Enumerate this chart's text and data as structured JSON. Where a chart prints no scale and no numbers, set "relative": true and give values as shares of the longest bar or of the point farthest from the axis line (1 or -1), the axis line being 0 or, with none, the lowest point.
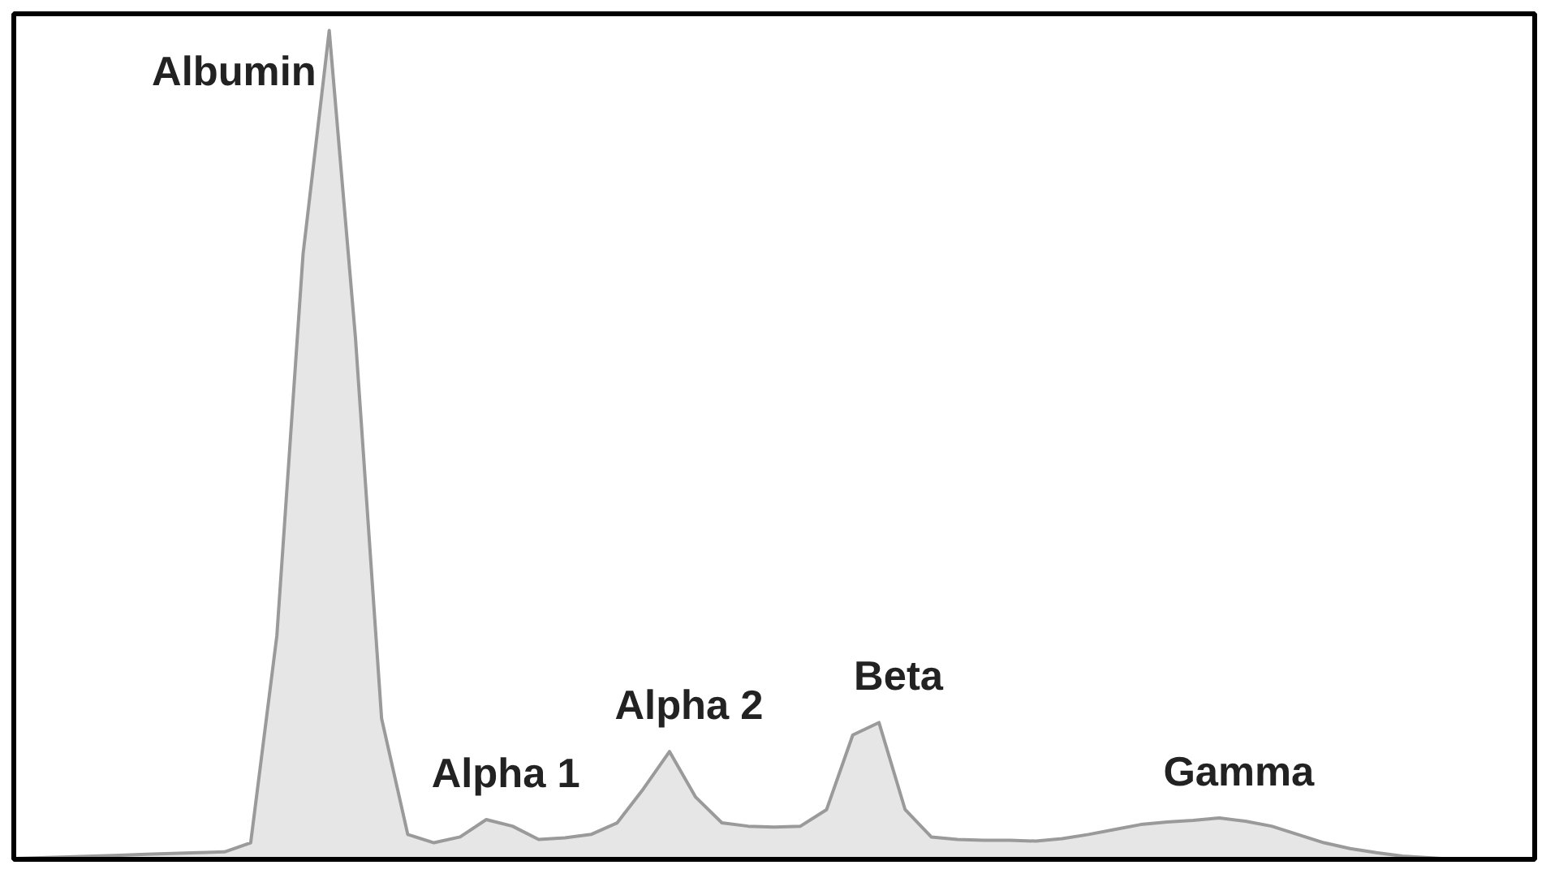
{
  "chart_data": {
    "type": "area",
    "relative": true,
    "color": "#e6e6e6",
    "categories": [
      null,
      null,
      null,
      null,
      null,
      null,
      null,
      null,
      null,
      null,
      null,
      null,
      null,
      null,
      null,
      null,
      null,
      null,
      null,
      null,
      null,
      null,
      null,
      null,
      null,
      null,
      null,
      null,
      null,
      null,
      null,
      null,
      null,
      null,
      null,
      null,
      null,
      null,
      null,
      null,
      null,
      null,
      null,
      null,
      null,
      null,
      null,
      null,
      null,
      null,
      null,
      null,
      null,
      null,
      null,
      null,
      null,
      null,
      null
    ],
    "values": [
      0.001,
      0.002,
      0.003,
      0.004,
      0.005,
      0.006,
      0.007,
      0.008,
      0.009,
      0.02,
      0.27,
      0.73,
      1,
      0.63,
      0.17,
      0.03,
      0.02,
      0.027,
      0.048,
      0.04,
      0.024,
      0.026,
      0.03,
      0.044,
      0.085,
      0.13,
      0.075,
      0.044,
      0.04,
      0.039,
      0.04,
      0.06,
      0.15,
      0.165,
      0.06,
      0.027,
      0.024,
      0.023,
      0.023,
      0.022,
      0.025,
      0.03,
      0.036,
      0.042,
      0.045,
      0.047,
      0.05,
      0.046,
      0.04,
      0.03,
      0.02,
      0.013,
      0.008,
      0.004,
      0.002,
      0,
      0,
      0,
      0
    ],
    "annotations": [
      "Albumin",
      "Alpha 1",
      "Alpha 2",
      "Beta",
      "Gamma"
    ],
    "grid": false
  }
}
